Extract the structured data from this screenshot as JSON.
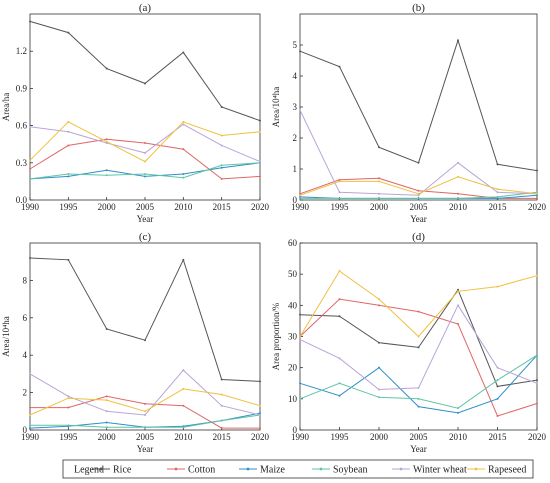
{
  "legend": {
    "title": "Legend"
  },
  "series_styles": [
    {
      "name": "Rice",
      "color": "#555555"
    },
    {
      "name": "Cotton",
      "color": "#e06666"
    },
    {
      "name": "Maize",
      "color": "#2f8fc8"
    },
    {
      "name": "Soybean",
      "color": "#5fc4a8"
    },
    {
      "name": "Winter wheat",
      "color": "#b9a4d6"
    },
    {
      "name": "Rapeseed",
      "color": "#f0c040"
    }
  ],
  "chart_data": [
    {
      "id": "a",
      "type": "line",
      "title": "(a)",
      "xlabel": "Year",
      "ylabel": "Area/ha",
      "x": [
        1990,
        1995,
        2000,
        2005,
        2010,
        2015,
        2020
      ],
      "xlim": [
        1990,
        2020
      ],
      "ylim": [
        0,
        1.5
      ],
      "yticks": [
        0.0,
        0.3,
        0.6,
        0.9,
        1.2
      ],
      "yticklabels": [
        "0.0",
        "0.3",
        "0.6",
        "0.9",
        "1.2"
      ],
      "series": [
        {
          "name": "Rice",
          "values": [
            1.44,
            1.35,
            1.06,
            0.94,
            1.19,
            0.75,
            0.64
          ]
        },
        {
          "name": "Cotton",
          "values": [
            0.25,
            0.44,
            0.49,
            0.46,
            0.41,
            0.17,
            0.19
          ]
        },
        {
          "name": "Maize",
          "values": [
            0.17,
            0.19,
            0.24,
            0.19,
            0.21,
            0.26,
            0.3
          ]
        },
        {
          "name": "Soybean",
          "values": [
            0.17,
            0.21,
            0.2,
            0.21,
            0.18,
            0.28,
            0.3
          ]
        },
        {
          "name": "Winter wheat",
          "values": [
            0.59,
            0.55,
            0.46,
            0.38,
            0.61,
            0.44,
            0.31
          ]
        },
        {
          "name": "Rapeseed",
          "values": [
            0.32,
            0.63,
            0.47,
            0.31,
            0.63,
            0.52,
            0.55
          ]
        }
      ]
    },
    {
      "id": "b",
      "type": "line",
      "title": "(b)",
      "xlabel": "Year",
      "ylabel": "Area/10⁴ha",
      "x": [
        1990,
        1995,
        2000,
        2005,
        2010,
        2015,
        2020
      ],
      "xlim": [
        1990,
        2020
      ],
      "ylim": [
        0,
        6
      ],
      "yticks": [
        0,
        1,
        2,
        3,
        4,
        5
      ],
      "yticklabels": [
        "0",
        "1",
        "2",
        "3",
        "4",
        "5"
      ],
      "series": [
        {
          "name": "Rice",
          "values": [
            4.8,
            4.3,
            1.7,
            1.2,
            5.15,
            1.15,
            0.95
          ]
        },
        {
          "name": "Cotton",
          "values": [
            0.2,
            0.65,
            0.7,
            0.3,
            0.2,
            0.05,
            0.05
          ]
        },
        {
          "name": "Maize",
          "values": [
            0.1,
            0.05,
            0.05,
            0.05,
            0.05,
            0.05,
            0.15
          ]
        },
        {
          "name": "Soybean",
          "values": [
            0.05,
            0.05,
            0.05,
            0.05,
            0.05,
            0.1,
            0.25
          ]
        },
        {
          "name": "Winter wheat",
          "values": [
            2.9,
            0.25,
            0.2,
            0.15,
            1.2,
            0.25,
            0.2
          ]
        },
        {
          "name": "Rapeseed",
          "values": [
            0.15,
            0.6,
            0.6,
            0.2,
            0.75,
            0.35,
            0.2
          ]
        }
      ]
    },
    {
      "id": "c",
      "type": "line",
      "title": "(c)",
      "xlabel": "Year",
      "ylabel": "Area/10⁴ha",
      "x": [
        1990,
        1995,
        2000,
        2005,
        2010,
        2015,
        2020
      ],
      "xlim": [
        1990,
        2020
      ],
      "ylim": [
        0,
        10
      ],
      "yticks": [
        0,
        2,
        4,
        6,
        8
      ],
      "yticklabels": [
        "0",
        "2",
        "4",
        "6",
        "8"
      ],
      "series": [
        {
          "name": "Rice",
          "values": [
            9.2,
            9.1,
            5.4,
            4.8,
            9.1,
            2.7,
            2.6
          ]
        },
        {
          "name": "Cotton",
          "values": [
            1.2,
            1.2,
            1.8,
            1.4,
            1.3,
            0.1,
            0.1
          ]
        },
        {
          "name": "Maize",
          "values": [
            0.1,
            0.2,
            0.4,
            0.15,
            0.2,
            0.5,
            0.9
          ]
        },
        {
          "name": "Soybean",
          "values": [
            0.25,
            0.25,
            0.15,
            0.15,
            0.15,
            0.5,
            0.8
          ]
        },
        {
          "name": "Winter wheat",
          "values": [
            3.0,
            1.8,
            1.0,
            0.8,
            3.2,
            1.3,
            0.8
          ]
        },
        {
          "name": "Rapeseed",
          "values": [
            0.8,
            1.7,
            1.6,
            1.0,
            2.2,
            1.9,
            1.3
          ]
        }
      ]
    },
    {
      "id": "d",
      "type": "line",
      "title": "(d)",
      "xlabel": "Year",
      "ylabel": "Area proportion/%",
      "x": [
        1990,
        1995,
        2000,
        2005,
        2010,
        2015,
        2020
      ],
      "xlim": [
        1990,
        2020
      ],
      "ylim": [
        0,
        60
      ],
      "yticks": [
        0,
        10,
        20,
        30,
        40,
        50,
        60
      ],
      "yticklabels": [
        "0",
        "10",
        "20",
        "30",
        "40",
        "50",
        "60"
      ],
      "series": [
        {
          "name": "Rice",
          "values": [
            37,
            36.5,
            28,
            26.5,
            45,
            14,
            16
          ]
        },
        {
          "name": "Cotton",
          "values": [
            30,
            42,
            40,
            38,
            34,
            4.5,
            8.5
          ]
        },
        {
          "name": "Maize",
          "values": [
            15,
            11,
            20,
            7.5,
            5.5,
            10,
            24
          ]
        },
        {
          "name": "Soybean",
          "values": [
            10,
            15,
            10.5,
            10,
            7,
            16,
            24
          ]
        },
        {
          "name": "Winter wheat",
          "values": [
            29,
            23,
            13,
            13.5,
            40,
            20,
            15
          ]
        },
        {
          "name": "Rapeseed",
          "values": [
            30,
            51,
            42,
            30,
            44.5,
            46,
            49.5
          ]
        }
      ]
    }
  ]
}
